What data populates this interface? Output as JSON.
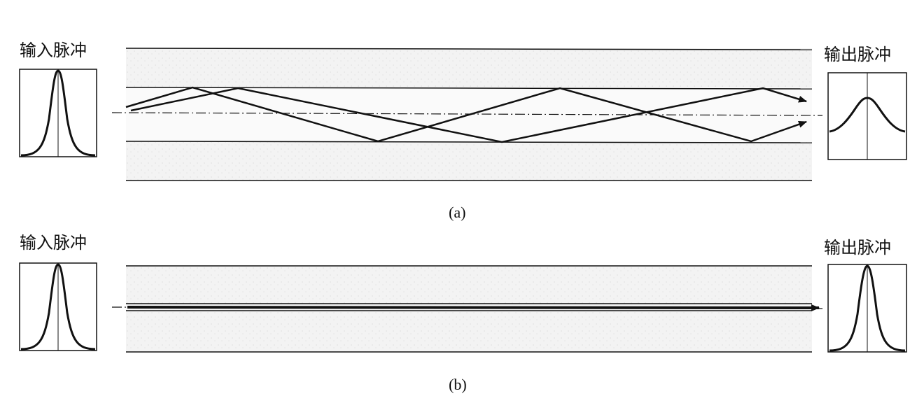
{
  "panel_a": {
    "input_label": "输入脉冲",
    "output_label": "输出脉冲",
    "caption": "(a)"
  },
  "panel_b": {
    "input_label": "输入脉冲",
    "output_label": "输出脉冲",
    "caption": "(b)"
  }
}
